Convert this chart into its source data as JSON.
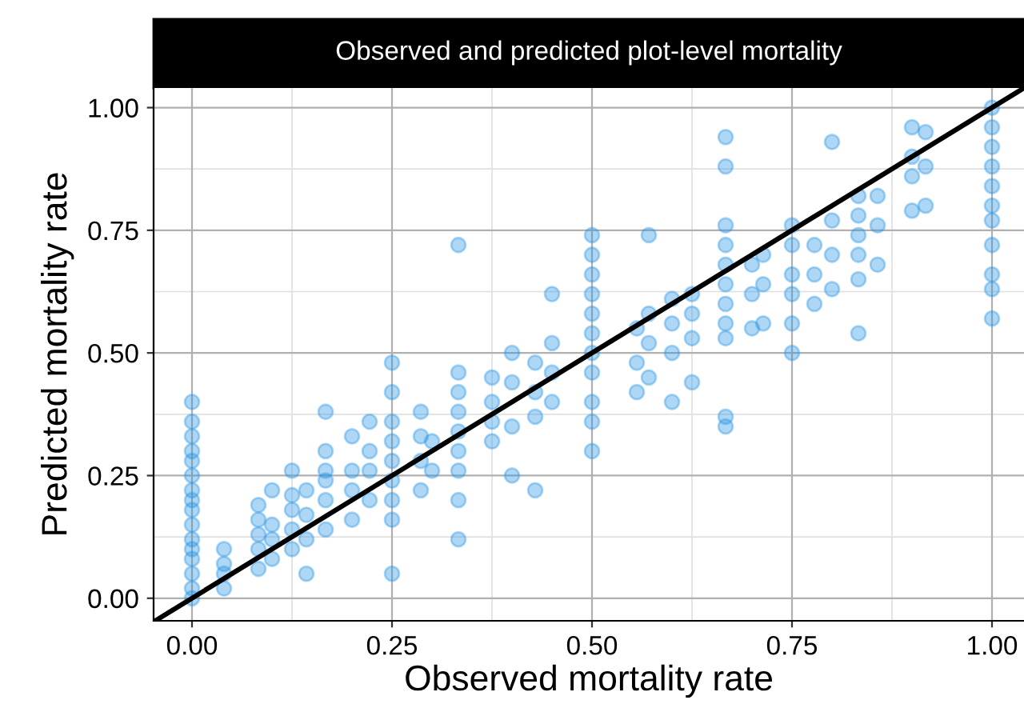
{
  "chart_data": {
    "type": "scatter",
    "title": "Observed and predicted plot-level mortality",
    "xlabel": "Observed mortality rate",
    "ylabel": "Predicted mortality rate",
    "xlim": [
      -0.048,
      1.04
    ],
    "ylim": [
      -0.046,
      1.04
    ],
    "xticks": [
      {
        "value": 0,
        "label": "0.00"
      },
      {
        "value": 0.25,
        "label": "0.25"
      },
      {
        "value": 0.5,
        "label": "0.50"
      },
      {
        "value": 0.75,
        "label": "0.75"
      },
      {
        "value": 1,
        "label": "1.00"
      }
    ],
    "yticks": [
      {
        "value": 0,
        "label": "0.00"
      },
      {
        "value": 0.25,
        "label": "0.25"
      },
      {
        "value": 0.5,
        "label": "0.50"
      },
      {
        "value": 0.75,
        "label": "0.75"
      },
      {
        "value": 1,
        "label": "1.00"
      }
    ],
    "grid": true,
    "series": [
      {
        "color": "#2b95e6",
        "marker": "circle",
        "x": [
          0,
          0,
          0,
          0,
          0,
          0,
          0,
          0,
          0,
          0,
          0,
          0,
          0,
          0,
          0,
          0,
          0.04,
          0.04,
          0.04,
          0.04,
          0.083,
          0.083,
          0.083,
          0.083,
          0.083,
          0.1,
          0.1,
          0.1,
          0.1,
          0.125,
          0.125,
          0.125,
          0.125,
          0.125,
          0.143,
          0.143,
          0.143,
          0.143,
          0.167,
          0.167,
          0.167,
          0.167,
          0.167,
          0.167,
          0.2,
          0.2,
          0.2,
          0.2,
          0.222,
          0.222,
          0.222,
          0.222,
          0.25,
          0.25,
          0.25,
          0.25,
          0.25,
          0.25,
          0.25,
          0.25,
          0.25,
          0.286,
          0.286,
          0.286,
          0.286,
          0.3,
          0.3,
          0.333,
          0.333,
          0.333,
          0.333,
          0.333,
          0.333,
          0.333,
          0.333,
          0.333,
          0.375,
          0.375,
          0.375,
          0.375,
          0.4,
          0.4,
          0.4,
          0.4,
          0.429,
          0.429,
          0.429,
          0.429,
          0.45,
          0.45,
          0.45,
          0.45,
          0.5,
          0.5,
          0.5,
          0.5,
          0.5,
          0.5,
          0.5,
          0.5,
          0.5,
          0.5,
          0.5,
          0.556,
          0.556,
          0.556,
          0.571,
          0.571,
          0.571,
          0.571,
          0.6,
          0.6,
          0.6,
          0.6,
          0.625,
          0.625,
          0.625,
          0.625,
          0.667,
          0.667,
          0.667,
          0.667,
          0.667,
          0.667,
          0.667,
          0.667,
          0.667,
          0.667,
          0.667,
          0.7,
          0.7,
          0.7,
          0.714,
          0.714,
          0.714,
          0.75,
          0.75,
          0.75,
          0.75,
          0.75,
          0.75,
          0.778,
          0.778,
          0.778,
          0.8,
          0.8,
          0.8,
          0.8,
          0.833,
          0.833,
          0.833,
          0.833,
          0.833,
          0.833,
          0.857,
          0.857,
          0.857,
          0.9,
          0.9,
          0.9,
          0.9,
          0.917,
          0.917,
          0.917,
          1,
          1,
          1,
          1,
          1,
          1,
          1,
          1,
          1,
          1,
          1
        ],
        "values": [
          0,
          0.02,
          0.05,
          0.08,
          0.1,
          0.12,
          0.15,
          0.18,
          0.2,
          0.22,
          0.25,
          0.28,
          0.3,
          0.33,
          0.36,
          0.4,
          0.02,
          0.05,
          0.07,
          0.1,
          0.06,
          0.1,
          0.13,
          0.16,
          0.19,
          0.08,
          0.12,
          0.15,
          0.22,
          0.1,
          0.14,
          0.18,
          0.21,
          0.26,
          0.05,
          0.12,
          0.17,
          0.22,
          0.14,
          0.2,
          0.24,
          0.26,
          0.3,
          0.38,
          0.16,
          0.22,
          0.26,
          0.33,
          0.2,
          0.26,
          0.3,
          0.36,
          0.05,
          0.16,
          0.2,
          0.24,
          0.28,
          0.32,
          0.36,
          0.42,
          0.48,
          0.22,
          0.28,
          0.33,
          0.38,
          0.26,
          0.32,
          0.12,
          0.2,
          0.26,
          0.3,
          0.34,
          0.38,
          0.42,
          0.46,
          0.72,
          0.32,
          0.36,
          0.4,
          0.45,
          0.25,
          0.35,
          0.44,
          0.5,
          0.22,
          0.37,
          0.42,
          0.48,
          0.4,
          0.46,
          0.52,
          0.62,
          0.3,
          0.36,
          0.4,
          0.46,
          0.5,
          0.54,
          0.58,
          0.62,
          0.66,
          0.7,
          0.74,
          0.42,
          0.48,
          0.55,
          0.45,
          0.52,
          0.58,
          0.74,
          0.4,
          0.5,
          0.56,
          0.61,
          0.44,
          0.53,
          0.58,
          0.62,
          0.35,
          0.37,
          0.53,
          0.56,
          0.6,
          0.64,
          0.68,
          0.72,
          0.76,
          0.88,
          0.94,
          0.55,
          0.62,
          0.68,
          0.56,
          0.64,
          0.7,
          0.5,
          0.56,
          0.62,
          0.66,
          0.72,
          0.76,
          0.6,
          0.66,
          0.72,
          0.63,
          0.7,
          0.77,
          0.93,
          0.54,
          0.65,
          0.7,
          0.74,
          0.78,
          0.82,
          0.68,
          0.76,
          0.82,
          0.79,
          0.86,
          0.9,
          0.96,
          0.8,
          0.88,
          0.95,
          0.57,
          0.63,
          0.66,
          0.72,
          0.77,
          0.8,
          0.84,
          0.88,
          0.92,
          0.96,
          1.0
        ]
      },
      {
        "type": "line",
        "color": "#000000",
        "marker": "none",
        "x": [
          -0.046,
          1.04
        ],
        "values": [
          -0.046,
          1.04
        ]
      }
    ]
  }
}
